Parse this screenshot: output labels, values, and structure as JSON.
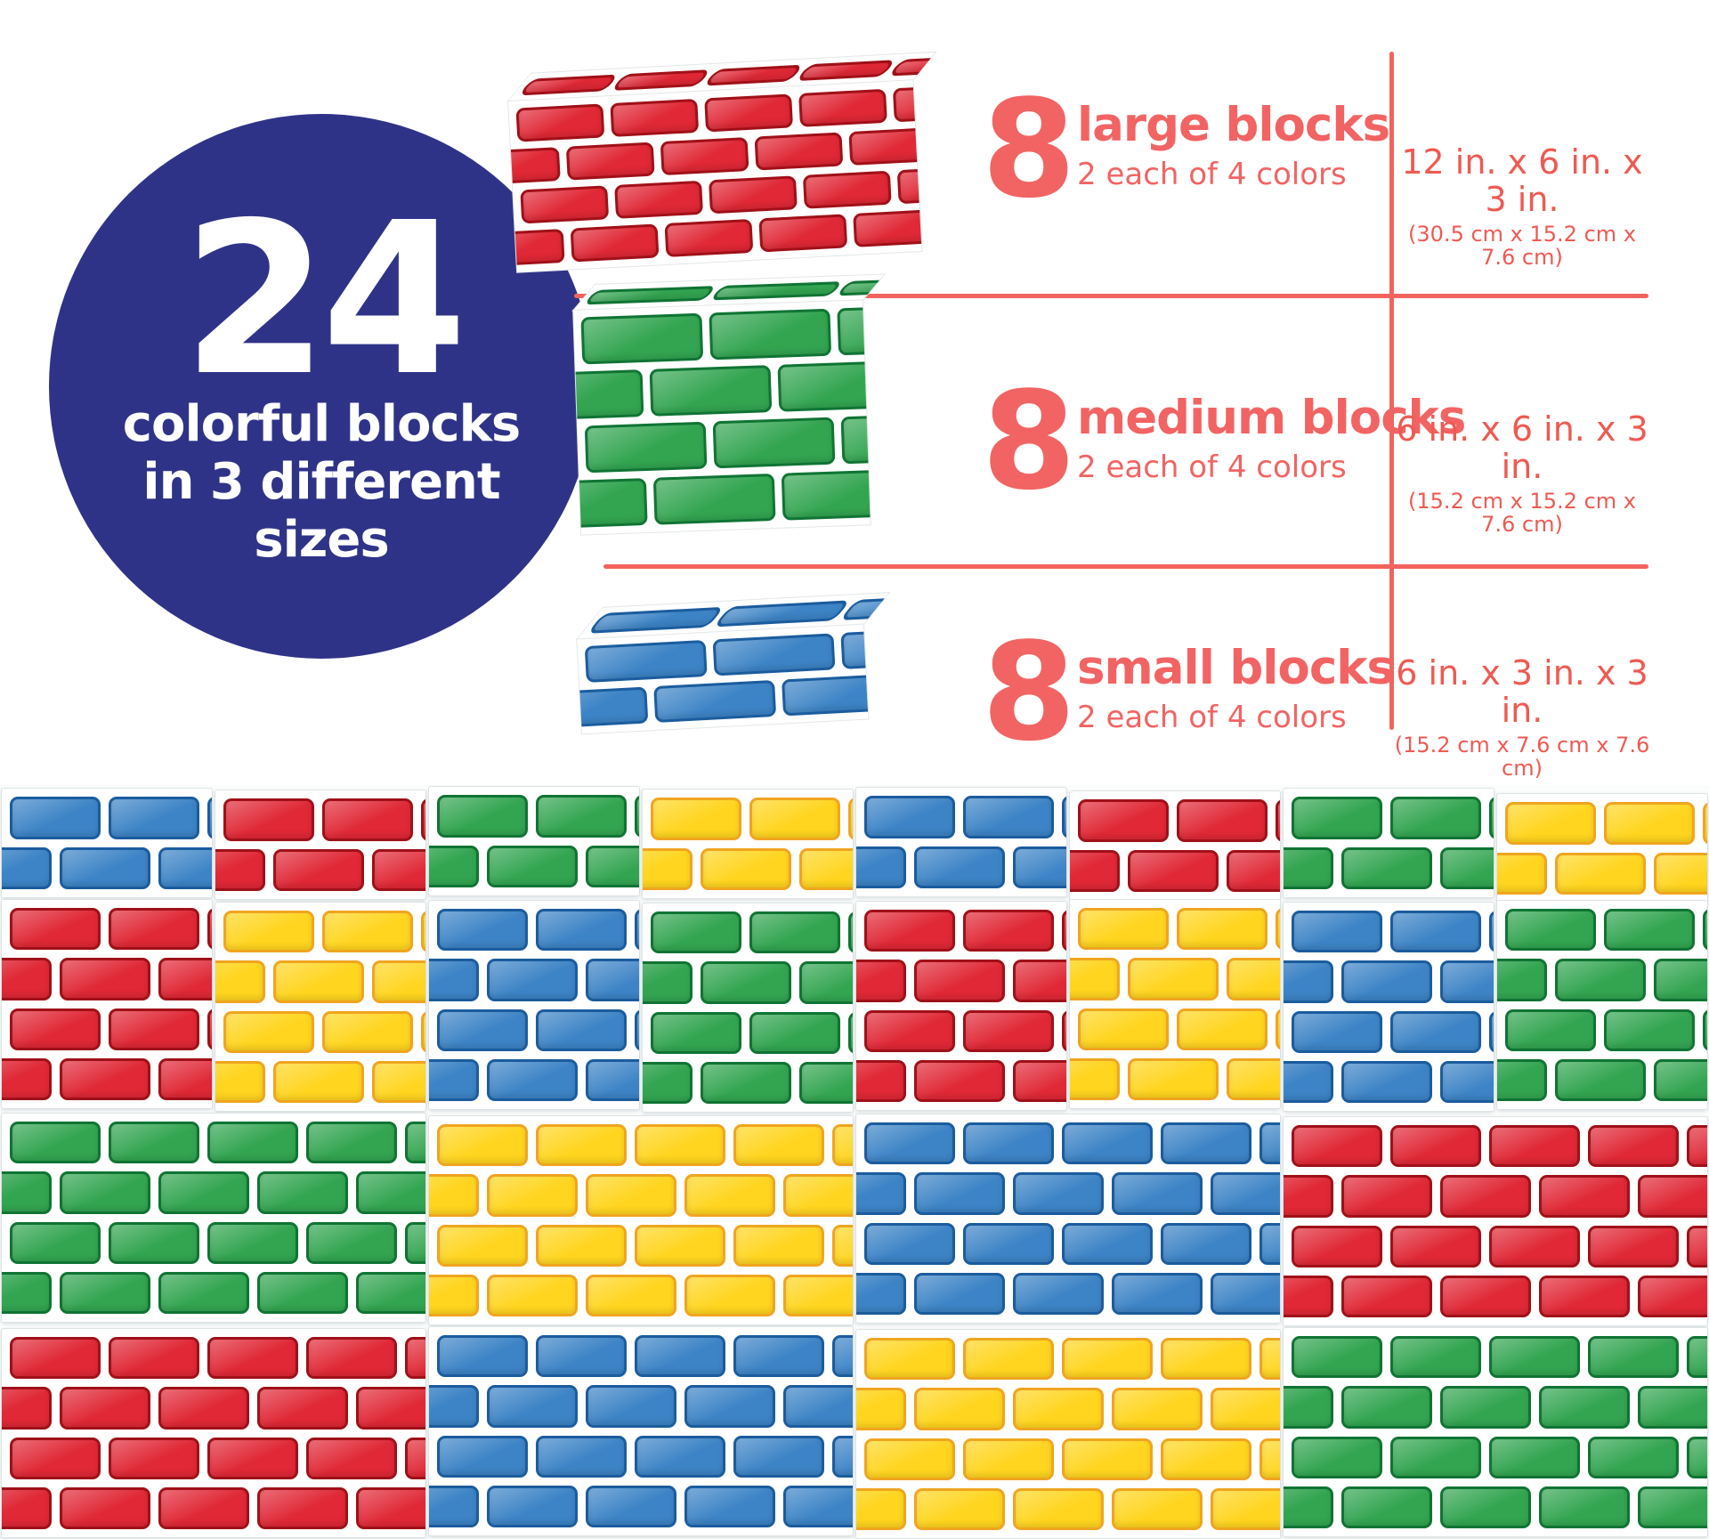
{
  "badge": {
    "number": "24",
    "lines": [
      "colorful blocks",
      "in 3 different",
      "sizes"
    ]
  },
  "rows": [
    {
      "id": "large",
      "count": "8",
      "title": "large blocks",
      "subtitle": "2 each of 4 colors",
      "dims_in": "12 in. x 6 in. x 3 in.",
      "dims_cm": "(30.5 cm x 15.2 cm x 7.6 cm)",
      "photo_color": "red"
    },
    {
      "id": "medium",
      "count": "8",
      "title": "medium blocks",
      "subtitle": "2 each of 4 colors",
      "dims_in": "6 in. x 6 in. x 3 in.",
      "dims_cm": "(15.2 cm x 15.2 cm x 7.6 cm)",
      "photo_color": "green"
    },
    {
      "id": "small",
      "count": "8",
      "title": "small blocks",
      "subtitle": "2 each of 4 colors",
      "dims_in": "6 in. x 3 in. x 3 in.",
      "dims_cm": "(15.2 cm x 7.6 cm x 7.6 cm)",
      "photo_color": "blue"
    }
  ],
  "colors": {
    "navy": "#2f3388",
    "coral": "#f16463",
    "coral_dims": "#ee5a52",
    "line": "#f2635d",
    "brick": {
      "blue": {
        "fill": "#3d84c6",
        "edge": "#1b5c9e"
      },
      "red": {
        "fill": "#e02836",
        "edge": "#a01018"
      },
      "green": {
        "fill": "#33a551",
        "edge": "#107434"
      },
      "yellow": {
        "fill": "#ffd51f",
        "edge": "#f0a51f"
      }
    }
  },
  "wall": {
    "rows": [
      {
        "size": "small",
        "block_width": 240,
        "colors": [
          "blue",
          "red",
          "green",
          "yellow",
          "blue",
          "red",
          "green",
          "yellow"
        ]
      },
      {
        "size": "medium",
        "block_width": 240,
        "colors": [
          "red",
          "yellow",
          "blue",
          "green",
          "red",
          "yellow",
          "blue",
          "green"
        ]
      },
      {
        "size": "large",
        "block_width": 480,
        "colors": [
          "green",
          "yellow",
          "blue",
          "red"
        ]
      },
      {
        "size": "large",
        "block_width": 480,
        "colors": [
          "red",
          "blue",
          "yellow",
          "green"
        ]
      }
    ],
    "courses": {
      "small": 2,
      "medium": 4,
      "large": 4
    },
    "row_heights": {
      "small": 126,
      "medium": 238,
      "large": 238
    }
  }
}
